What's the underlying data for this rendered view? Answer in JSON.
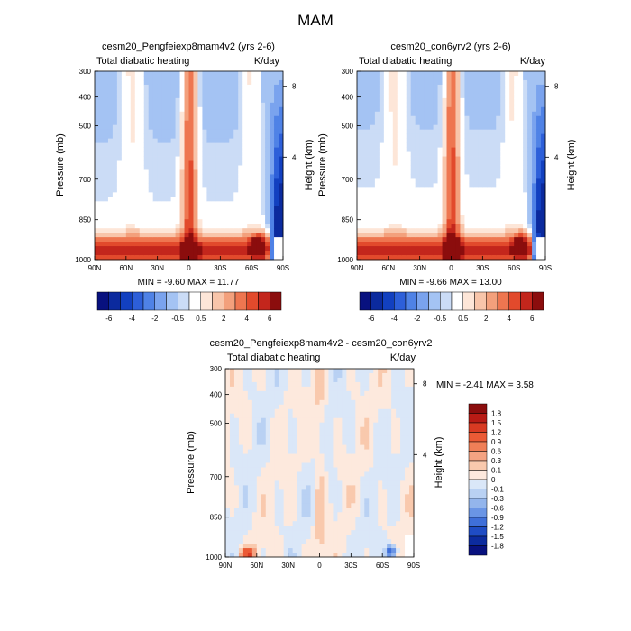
{
  "figure": {
    "title": "MAM"
  },
  "colorbar_top": {
    "labels": [
      "-6",
      "-4",
      "-2",
      "-0.5",
      "0.5",
      "2",
      "4",
      "6"
    ],
    "colors": [
      "#08117f",
      "#0b2a9e",
      "#1240c0",
      "#2d5fd9",
      "#4f82e6",
      "#7aa3ee",
      "#a4c3f3",
      "#cbdcf6",
      "#ffffff",
      "#fde6d8",
      "#f8c5aa",
      "#f3a07c",
      "#ee7650",
      "#e24a2c",
      "#c3261c",
      "#8b0d0d"
    ]
  },
  "colorbar_diff": {
    "labels": [
      "1.8",
      "1.5",
      "1.2",
      "0.9",
      "0.6",
      "0.3",
      "0.1",
      "0",
      "-0.1",
      "-0.3",
      "-0.6",
      "-0.9",
      "-1.2",
      "-1.5",
      "-1.8"
    ],
    "colors": [
      "#8b0d0d",
      "#b81b15",
      "#d83a22",
      "#eb5a35",
      "#f07f57",
      "#f4a382",
      "#f9c9ad",
      "#fde9dd",
      "#dae7f8",
      "#b9d1f3",
      "#93b5ec",
      "#6a95e5",
      "#3f6fd9",
      "#1f4cc4",
      "#0c2b9e",
      "#08117f"
    ]
  },
  "chart_data": [
    {
      "type": "heatmap",
      "title": "cesm20_Pengfeiexp8mam4v2 (yrs 2-6)",
      "left_string": "Total diabatic heating",
      "units": "K/day",
      "ylabel": "Pressure (mb)",
      "ylabel_right": "Height (km)",
      "x_ticks": [
        "90N",
        "60N",
        "30N",
        "0",
        "30S",
        "60S",
        "90S"
      ],
      "y_ticks": [
        "300",
        "400",
        "500",
        "700",
        "850",
        "1000"
      ],
      "y_ticks_right": [
        "8",
        "4"
      ],
      "min_label": "MIN =  -9.60  MAX =  11.77",
      "min": -9.6,
      "max": 11.77,
      "ylim": [
        1000,
        300
      ]
    },
    {
      "type": "heatmap",
      "title": "cesm20_con6yrv2 (yrs 2-6)",
      "left_string": "Total diabatic heating",
      "units": "K/day",
      "ylabel": "Pressure (mb)",
      "ylabel_right": "Height (km)",
      "x_ticks": [
        "90N",
        "60N",
        "30N",
        "0",
        "30S",
        "60S",
        "90S"
      ],
      "y_ticks": [
        "300",
        "400",
        "500",
        "700",
        "850",
        "1000"
      ],
      "y_ticks_right": [
        "8",
        "4"
      ],
      "min_label": "MIN =  -9.66  MAX =  13.00",
      "min": -9.66,
      "max": 13.0,
      "ylim": [
        1000,
        300
      ]
    },
    {
      "type": "heatmap",
      "title": "cesm20_Pengfeiexp8mam4v2 - cesm20_con6yrv2",
      "left_string": "Total diabatic heating",
      "units": "K/day",
      "ylabel": "Pressure (mb)",
      "ylabel_right": "Height (km)",
      "x_ticks": [
        "90N",
        "60N",
        "30N",
        "0",
        "30S",
        "60S",
        "90S"
      ],
      "y_ticks": [
        "300",
        "400",
        "500",
        "700",
        "850",
        "1000"
      ],
      "y_ticks_right": [
        "8",
        "4"
      ],
      "min_label": "MIN =  -2.41  MAX =   3.58",
      "min": -2.41,
      "max": 3.58,
      "ylim": [
        1000,
        300
      ]
    }
  ]
}
